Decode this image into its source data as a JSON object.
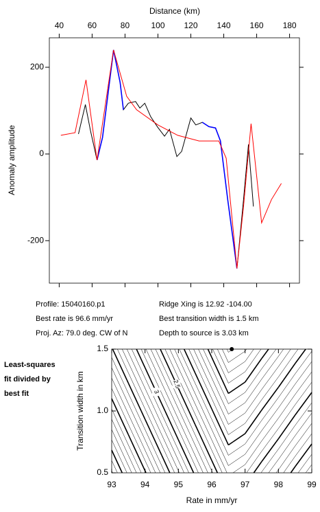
{
  "chart_data": [
    {
      "type": "line",
      "x_label": "Distance (km)",
      "y_label": "Anomaly amplitude",
      "xlim": [
        34,
        186
      ],
      "xticks": [
        40,
        60,
        80,
        100,
        120,
        140,
        160,
        180
      ],
      "ylim": [
        -298,
        268
      ],
      "yticks": [
        -200,
        0,
        200
      ],
      "series": [
        {
          "color": "#000000",
          "x": [
            51.7,
            55.9,
            59,
            63,
            66.3,
            73,
            77,
            79,
            82,
            86.4,
            89,
            92,
            95.6,
            99.8,
            104,
            107,
            111.5,
            114.4,
            120,
            123,
            127,
            131,
            135,
            138,
            142.4,
            148,
            152,
            155,
            158
          ],
          "values": [
            46,
            114,
            54,
            -14,
            38,
            240,
            165,
            102,
            117,
            121,
            106,
            117,
            86,
            62,
            41,
            57,
            -6,
            6,
            83,
            67,
            73,
            63,
            60,
            30,
            -105,
            -264,
            -105,
            22,
            -121
          ]
        },
        {
          "color": "#0000ff",
          "x": [
            63,
            66.3,
            73,
            77,
            79,
            100,
            127,
            131,
            135,
            138,
            142.4,
            148
          ],
          "values": [
            -14,
            38,
            240,
            165,
            102,
            null,
            73,
            63,
            60,
            30,
            -105,
            -264
          ]
        },
        {
          "color": "#ff0000",
          "x": [
            41,
            49.6,
            56.3,
            63,
            73,
            81,
            87,
            100,
            112,
            125,
            137,
            141.5,
            148,
            152,
            156.6,
            163,
            169,
            175
          ],
          "values": [
            43,
            49,
            171,
            -14,
            240,
            133,
            102,
            67,
            43,
            30,
            30,
            -10,
            -264,
            -121,
            70,
            -159,
            -105,
            -68
          ]
        }
      ],
      "annotations": [
        "Profile: 15040160.p1",
        "Best rate is 96.6 mm/yr",
        "Proj. Az: 79.0 deg. CW of N",
        "Ridge Xing is 12.92 -104.00",
        "Best transition width is 1.5 km",
        "Depth to source is   3.03 km"
      ]
    },
    {
      "type": "contour",
      "x_label": "Rate in mm/yr",
      "y_label": "Transition width in km",
      "side_label": [
        "Least-squares",
        "fit divided by",
        "best fit"
      ],
      "xlim": [
        93,
        99
      ],
      "xticks": [
        93,
        94,
        95,
        96,
        97,
        98,
        99
      ],
      "ylim": [
        0.5,
        1.5
      ],
      "yticks": [
        0.5,
        {
          "value": 1,
          "label": "1.0"
        },
        1.5
      ],
      "x": [
        93,
        93.5,
        94,
        94.5,
        95,
        95.5,
        96,
        96.5,
        97,
        97.5,
        98,
        98.5,
        99
      ],
      "y": [
        0.5,
        0.75,
        1,
        1.25,
        1.5
      ],
      "z": [
        [
          4.72,
          4.37,
          4.02,
          3.67,
          3.32,
          2.97,
          2.62,
          2.27,
          2.38,
          2.61,
          2.83,
          3.06,
          3.28
        ],
        [
          4.42,
          4.07,
          3.72,
          3.37,
          3.02,
          2.67,
          2.32,
          1.97,
          2.08,
          2.31,
          2.53,
          2.76,
          2.98
        ],
        [
          4.12,
          3.77,
          3.42,
          3.07,
          2.72,
          2.37,
          2.02,
          1.67,
          1.78,
          2.01,
          2.23,
          2.46,
          2.68
        ],
        [
          3.82,
          3.47,
          3.12,
          2.77,
          2.42,
          2.07,
          1.72,
          1.37,
          1.48,
          1.71,
          1.93,
          2.16,
          2.38
        ],
        [
          3.52,
          3.17,
          2.82,
          2.47,
          2.12,
          1.77,
          1.42,
          1.07,
          1.18,
          1.41,
          1.63,
          1.86,
          2.08
        ]
      ],
      "levels": [
        1.1,
        1.2,
        1.3,
        1.4,
        1.5,
        1.6,
        1.7,
        1.8,
        1.9,
        2.0,
        2.1,
        2.2,
        2.3,
        2.4,
        2.5,
        2.6,
        2.7,
        2.8,
        2.9,
        3.0,
        3.1,
        3.2,
        3.3,
        3.4,
        3.5,
        3.6,
        3.7,
        3.8,
        3.9,
        4.0,
        4.1,
        4.2,
        4.3,
        4.4,
        4.5,
        4.6,
        4.7
      ],
      "bold_levels": [
        1.5,
        2.0,
        2.5,
        3.0,
        3.5,
        4.0,
        4.5
      ],
      "level_labels": [
        2.5,
        3
      ],
      "best_fit": {
        "x": 96.6,
        "y": 1.5
      }
    }
  ]
}
